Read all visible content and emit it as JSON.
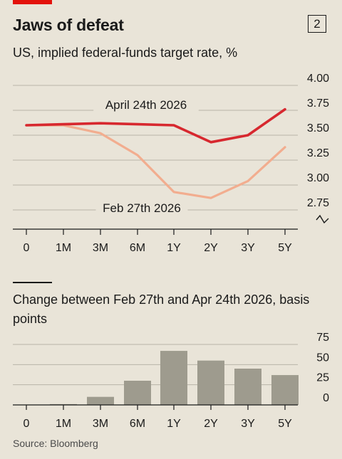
{
  "header": {
    "title": "Jaws of defeat",
    "chart_number": "2"
  },
  "footer": {
    "source": "Source: Bloomberg"
  },
  "colors": {
    "background": "#e9e4d8",
    "accent": "#e3120b",
    "april": "#d7282f",
    "feb": "#f2ad8f",
    "bars": "#9e9b8e",
    "grid": "#b9b5a9"
  },
  "chart_data": [
    {
      "type": "line",
      "title": "US, implied federal-funds target rate, %",
      "categories": [
        "0",
        "1M",
        "3M",
        "6M",
        "1Y",
        "2Y",
        "3Y",
        "5Y"
      ],
      "series": [
        {
          "name": "April 24th 2026",
          "values": [
            3.6,
            3.61,
            3.62,
            3.61,
            3.6,
            3.43,
            3.5,
            3.76
          ]
        },
        {
          "name": "Feb 27th 2026",
          "values": [
            3.6,
            3.6,
            3.52,
            3.3,
            2.93,
            2.87,
            3.04,
            3.38
          ]
        }
      ],
      "yticks": [
        "4.00",
        "3.75",
        "3.50",
        "3.25",
        "3.00",
        "2.75"
      ],
      "ylim": [
        2.75,
        4.0
      ],
      "grid": true,
      "axis_break": true
    },
    {
      "type": "bar",
      "title": "Change between Feb 27th and Apr 24th 2026, basis points",
      "categories": [
        "0",
        "1M",
        "3M",
        "6M",
        "1Y",
        "2Y",
        "3Y",
        "5Y"
      ],
      "values": [
        0,
        1,
        10,
        30,
        67,
        55,
        45,
        37
      ],
      "yticks": [
        "75",
        "50",
        "25",
        "0"
      ],
      "ylim": [
        0,
        75
      ],
      "grid": true
    }
  ]
}
